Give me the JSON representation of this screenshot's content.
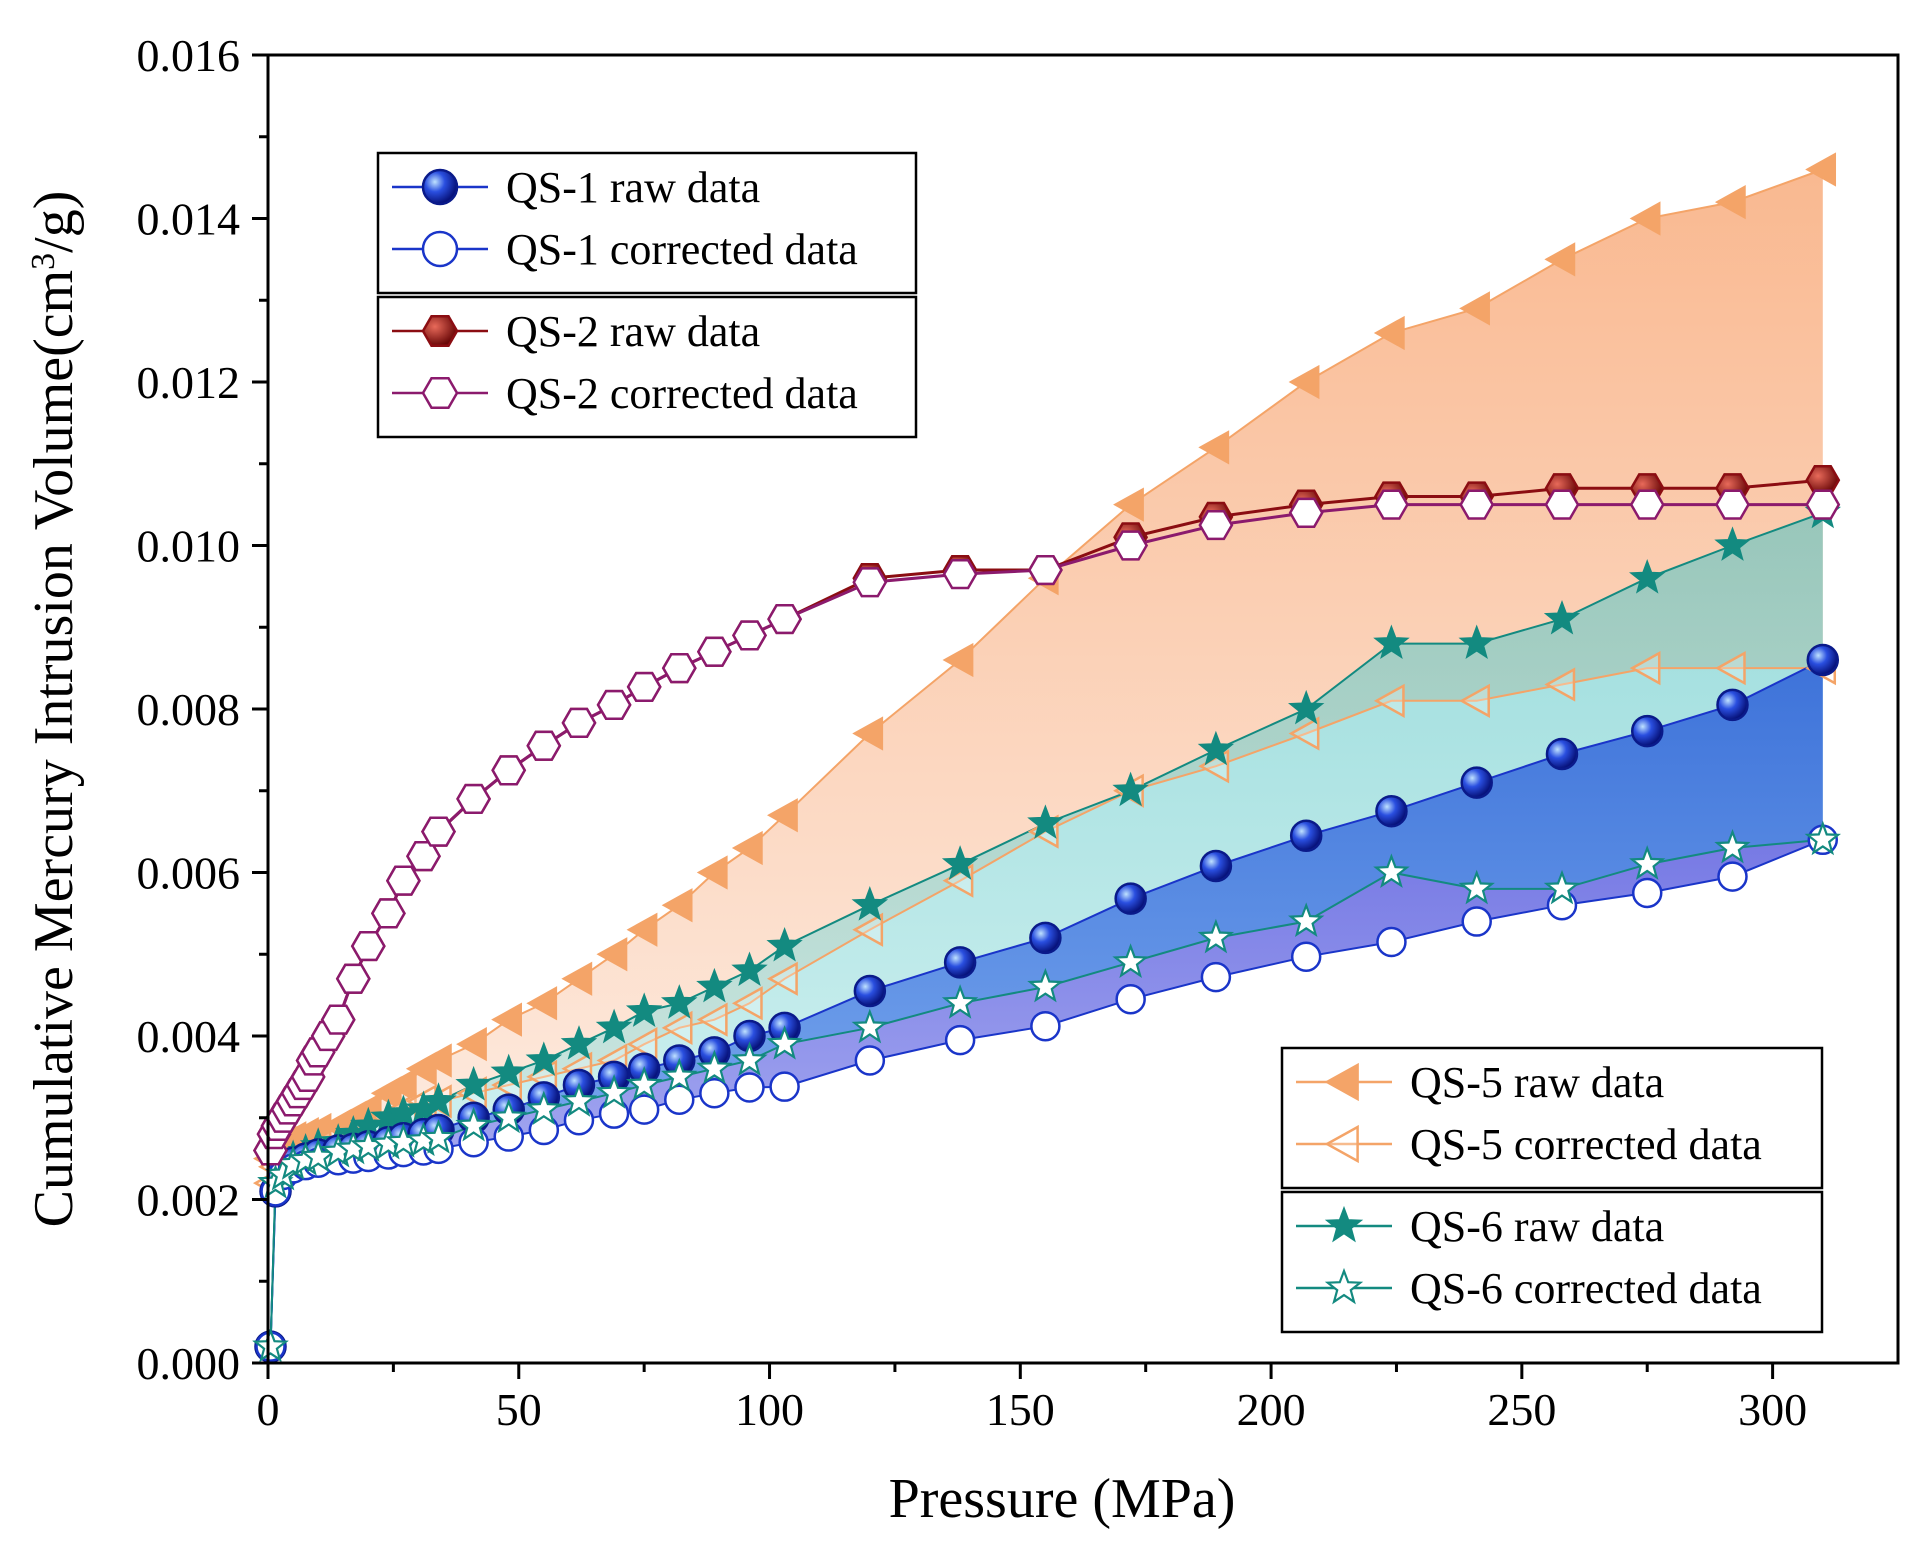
{
  "chart_data": {
    "type": "line",
    "title": "",
    "xlabel": "Pressure (MPa)",
    "ylabel": "Cumulative Mercury Intrusion Volume(cm³/g)",
    "xlim": [
      0,
      325
    ],
    "ylim": [
      0,
      0.016
    ],
    "xticks": [
      0,
      50,
      100,
      150,
      200,
      250,
      300
    ],
    "xtick_labels": [
      "0",
      "50",
      "100",
      "150",
      "200",
      "250",
      "300"
    ],
    "yticks": [
      0,
      0.002,
      0.004,
      0.006,
      0.008,
      0.01,
      0.012,
      0.014,
      0.016
    ],
    "ytick_labels": [
      "0.000",
      "0.002",
      "0.004",
      "0.006",
      "0.008",
      "0.010",
      "0.012",
      "0.014",
      "0.016"
    ],
    "series": [
      {
        "name": "QS-1 raw data",
        "color": "#1a35c9",
        "marker": "sphere",
        "filled": true,
        "x": [
          0.5,
          1.5,
          3,
          5,
          7.5,
          10,
          14,
          17,
          20,
          24,
          27,
          31,
          34,
          41,
          48,
          55,
          62,
          69,
          75,
          82,
          89,
          96,
          103,
          120,
          138,
          155,
          172,
          189,
          207,
          224,
          241,
          258,
          275,
          292,
          310
        ],
        "y": [
          0.0002,
          0.0021,
          0.00235,
          0.00245,
          0.0025,
          0.00255,
          0.0026,
          0.00262,
          0.00265,
          0.0027,
          0.00275,
          0.0028,
          0.00285,
          0.003,
          0.0031,
          0.00325,
          0.0034,
          0.0035,
          0.0036,
          0.0037,
          0.0038,
          0.004,
          0.0041,
          0.00455,
          0.0049,
          0.0052,
          0.00568,
          0.00608,
          0.00645,
          0.00675,
          0.0071,
          0.00745,
          0.00773,
          0.00805,
          0.0086
        ]
      },
      {
        "name": "QS-1 corrected data",
        "color": "#1a35c9",
        "marker": "circle",
        "filled": false,
        "x": [
          0.5,
          1.5,
          3,
          5,
          7.5,
          10,
          14,
          17,
          20,
          24,
          27,
          31,
          34,
          41,
          48,
          55,
          62,
          69,
          75,
          82,
          89,
          96,
          103,
          120,
          138,
          155,
          172,
          189,
          207,
          224,
          241,
          258,
          275,
          292,
          310
        ],
        "y": [
          0.0002,
          0.0021,
          0.0023,
          0.00238,
          0.00242,
          0.00245,
          0.00248,
          0.0025,
          0.00252,
          0.00255,
          0.00258,
          0.0026,
          0.00262,
          0.0027,
          0.00277,
          0.00285,
          0.00297,
          0.00305,
          0.0031,
          0.00322,
          0.0033,
          0.00337,
          0.00338,
          0.0037,
          0.00395,
          0.00412,
          0.00445,
          0.00472,
          0.00497,
          0.00515,
          0.0054,
          0.0056,
          0.00575,
          0.00595,
          0.0064
        ]
      },
      {
        "name": "QS-2 raw data",
        "color": "#8b0d12",
        "marker": "hexagon",
        "filled": true,
        "x": [
          0.5,
          1.2,
          2,
          3,
          4,
          5,
          6,
          7,
          8,
          9,
          10,
          12,
          14,
          17,
          20,
          24,
          27,
          31,
          34,
          41,
          48,
          55,
          62,
          69,
          75,
          82,
          89,
          96,
          103,
          120,
          138,
          155,
          172,
          189,
          207,
          224,
          241,
          258,
          275,
          292,
          310
        ],
        "y": [
          0.0026,
          0.0028,
          0.0029,
          0.003,
          0.0031,
          0.0032,
          0.0033,
          0.0034,
          0.0035,
          0.0037,
          0.0038,
          0.004,
          0.0042,
          0.0047,
          0.0051,
          0.0055,
          0.0059,
          0.0062,
          0.0065,
          0.0069,
          0.00725,
          0.00755,
          0.00783,
          0.00805,
          0.00827,
          0.0085,
          0.0087,
          0.0089,
          0.0091,
          0.0096,
          0.0097,
          0.0097,
          0.0101,
          0.01035,
          0.0105,
          0.0106,
          0.0106,
          0.0107,
          0.0107,
          0.0107,
          0.0108
        ]
      },
      {
        "name": "QS-2 corrected data",
        "color": "#8b1a6d",
        "marker": "hexagon",
        "filled": false,
        "x": [
          0.5,
          1.2,
          2,
          3,
          4,
          5,
          6,
          7,
          8,
          9,
          10,
          12,
          14,
          17,
          20,
          24,
          27,
          31,
          34,
          41,
          48,
          55,
          62,
          69,
          75,
          82,
          89,
          96,
          103,
          120,
          138,
          155,
          172,
          189,
          207,
          224,
          241,
          258,
          275,
          292,
          310
        ],
        "y": [
          0.0026,
          0.0028,
          0.0029,
          0.003,
          0.0031,
          0.0032,
          0.0033,
          0.0034,
          0.0035,
          0.0037,
          0.0038,
          0.004,
          0.0042,
          0.0047,
          0.0051,
          0.0055,
          0.0059,
          0.0062,
          0.0065,
          0.0069,
          0.00725,
          0.00755,
          0.00783,
          0.00805,
          0.00827,
          0.0085,
          0.0087,
          0.0089,
          0.0091,
          0.00955,
          0.00965,
          0.0097,
          0.01,
          0.01025,
          0.0104,
          0.0105,
          0.0105,
          0.0105,
          0.0105,
          0.0105,
          0.0105
        ]
      },
      {
        "name": "QS-5 raw data",
        "color": "#f4a468",
        "marker": "triangle-left",
        "filled": true,
        "x": [
          0.5,
          1.5,
          3,
          5,
          7.5,
          10,
          14,
          17,
          20,
          24,
          27,
          31,
          34,
          41,
          48,
          55,
          62,
          69,
          75,
          82,
          89,
          96,
          103,
          120,
          138,
          155,
          172,
          189,
          207,
          224,
          241,
          258,
          275,
          292,
          310
        ],
        "y": [
          0.0025,
          0.0026,
          0.0027,
          0.00275,
          0.0028,
          0.00285,
          0.0029,
          0.003,
          0.0031,
          0.0033,
          0.0034,
          0.0036,
          0.0037,
          0.0039,
          0.0042,
          0.0044,
          0.0047,
          0.005,
          0.0053,
          0.0056,
          0.006,
          0.0063,
          0.0067,
          0.0077,
          0.0086,
          0.0096,
          0.0105,
          0.0112,
          0.012,
          0.0126,
          0.0129,
          0.0135,
          0.014,
          0.0142,
          0.0146
        ]
      },
      {
        "name": "QS-5 corrected data",
        "color": "#f4a468",
        "marker": "triangle-left",
        "filled": false,
        "x": [
          0.5,
          1.5,
          3,
          5,
          7.5,
          10,
          14,
          17,
          20,
          24,
          27,
          31,
          34,
          41,
          48,
          55,
          62,
          69,
          75,
          82,
          89,
          96,
          103,
          120,
          138,
          155,
          172,
          189,
          207,
          224,
          241,
          258,
          275,
          292,
          310
        ],
        "y": [
          0.0022,
          0.0024,
          0.0025,
          0.00255,
          0.0026,
          0.00265,
          0.0027,
          0.0028,
          0.0029,
          0.003,
          0.0031,
          0.0032,
          0.0032,
          0.0033,
          0.0034,
          0.0035,
          0.0036,
          0.0037,
          0.0039,
          0.0041,
          0.0042,
          0.0044,
          0.0047,
          0.0053,
          0.0059,
          0.0065,
          0.007,
          0.0073,
          0.0077,
          0.0081,
          0.0081,
          0.0083,
          0.0085,
          0.0085,
          0.0085
        ]
      },
      {
        "name": "QS-6 raw data",
        "color": "#138a80",
        "marker": "star",
        "filled": true,
        "x": [
          0.5,
          1.5,
          3,
          5,
          7.5,
          10,
          14,
          17,
          20,
          24,
          27,
          31,
          34,
          41,
          48,
          55,
          62,
          69,
          75,
          82,
          89,
          96,
          103,
          120,
          138,
          155,
          172,
          189,
          207,
          224,
          241,
          258,
          275,
          292,
          310
        ],
        "y": [
          0.0002,
          0.0022,
          0.0024,
          0.0025,
          0.00258,
          0.00265,
          0.0027,
          0.0028,
          0.0029,
          0.003,
          0.00305,
          0.0031,
          0.0032,
          0.0034,
          0.00355,
          0.0037,
          0.0039,
          0.0041,
          0.0043,
          0.0044,
          0.0046,
          0.0048,
          0.0051,
          0.0056,
          0.0061,
          0.0066,
          0.007,
          0.0075,
          0.008,
          0.0088,
          0.0088,
          0.0091,
          0.0096,
          0.01,
          0.0104
        ]
      },
      {
        "name": "QS-6 corrected data",
        "color": "#138a80",
        "marker": "star",
        "filled": false,
        "x": [
          0.5,
          1.5,
          3,
          5,
          7.5,
          10,
          14,
          17,
          20,
          24,
          27,
          31,
          34,
          41,
          48,
          55,
          62,
          69,
          75,
          82,
          89,
          96,
          103,
          120,
          138,
          155,
          172,
          189,
          207,
          224,
          241,
          258,
          275,
          292,
          310
        ],
        "y": [
          0.0002,
          0.0022,
          0.0023,
          0.00243,
          0.00248,
          0.00252,
          0.00258,
          0.00262,
          0.00265,
          0.00268,
          0.0027,
          0.00272,
          0.00275,
          0.0029,
          0.003,
          0.0031,
          0.0032,
          0.0033,
          0.0034,
          0.0035,
          0.0036,
          0.0037,
          0.0039,
          0.0041,
          0.0044,
          0.0046,
          0.0049,
          0.0052,
          0.0054,
          0.006,
          0.0058,
          0.0058,
          0.0061,
          0.0063,
          0.0064
        ]
      }
    ],
    "fills": [
      {
        "between": [
          "QS-5 raw data",
          "QS-5 corrected data"
        ],
        "color": "#f7a472",
        "opacity": 0.75
      },
      {
        "between": [
          "QS-6 raw data",
          "QS-6 corrected data"
        ],
        "color": "#6fd2cf",
        "opacity": 0.6
      },
      {
        "between": [
          "QS-1 raw data",
          "QS-1 corrected data"
        ],
        "color": "#2c63d6",
        "opacity": 0.85
      },
      {
        "between": [
          "QS-6 corrected data",
          "QS-1 corrected data"
        ],
        "color": "#8f82e6",
        "opacity": 0.75
      }
    ],
    "legends": [
      {
        "location": "upper-left",
        "groups": [
          [
            "QS-1 raw data",
            "QS-1 corrected data"
          ],
          [
            "QS-2 raw data",
            "QS-2 corrected data"
          ]
        ]
      },
      {
        "location": "lower-right",
        "groups": [
          [
            "QS-5 raw data",
            "QS-5 corrected data"
          ],
          [
            "QS-6 raw data",
            "QS-6 corrected data"
          ]
        ]
      }
    ]
  }
}
